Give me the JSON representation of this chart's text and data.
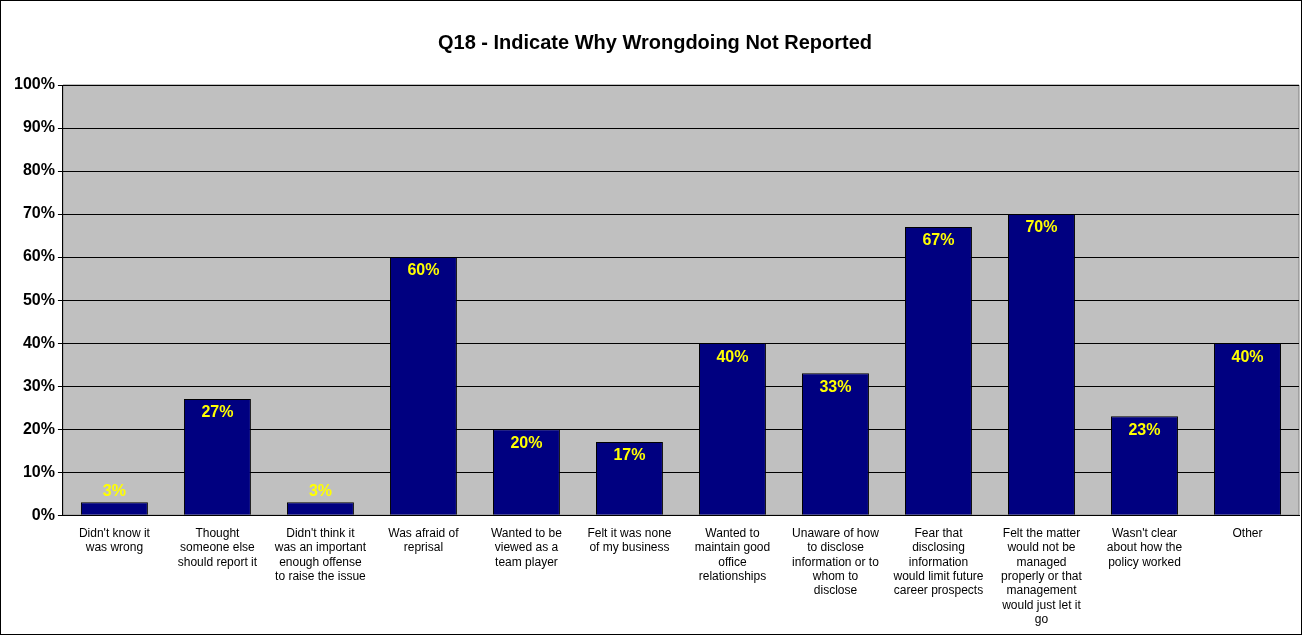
{
  "chart_data": {
    "type": "bar",
    "title": "Q18 - Indicate Why Wrongdoing Not Reported",
    "categories": [
      "Didn't know it was wrong",
      "Thought someone else should report it",
      "Didn't think it was an important enough offense to raise the issue",
      "Was afraid of reprisal",
      "Wanted to be viewed as a team player",
      "Felt it was none of my business",
      "Wanted to maintain good office relationships",
      "Unaware of how to disclose information or to whom to disclose",
      "Fear that disclosing information would limit future career prospects",
      "Felt the matter would not be managed properly or that management would just let it go",
      "Wasn't clear about how the policy worked",
      "Other"
    ],
    "values": [
      3,
      27,
      3,
      60,
      20,
      17,
      40,
      33,
      67,
      70,
      23,
      40
    ],
    "value_labels": [
      "3%",
      "27%",
      "3%",
      "60%",
      "20%",
      "17%",
      "40%",
      "33%",
      "67%",
      "70%",
      "23%",
      "40%"
    ],
    "color": "#000080",
    "ylim": [
      0,
      100
    ],
    "yticks": [
      {
        "value": 0,
        "label": "0%"
      },
      {
        "value": 10,
        "label": "10%"
      },
      {
        "value": 20,
        "label": "20%"
      },
      {
        "value": 30,
        "label": "30%"
      },
      {
        "value": 40,
        "label": "40%"
      },
      {
        "value": 50,
        "label": "50%"
      },
      {
        "value": 60,
        "label": "60%"
      },
      {
        "value": 70,
        "label": "70%"
      },
      {
        "value": 80,
        "label": "80%"
      },
      {
        "value": 90,
        "label": "90%"
      },
      {
        "value": 100,
        "label": "100%"
      }
    ],
    "grid": "y",
    "legend": false
  }
}
